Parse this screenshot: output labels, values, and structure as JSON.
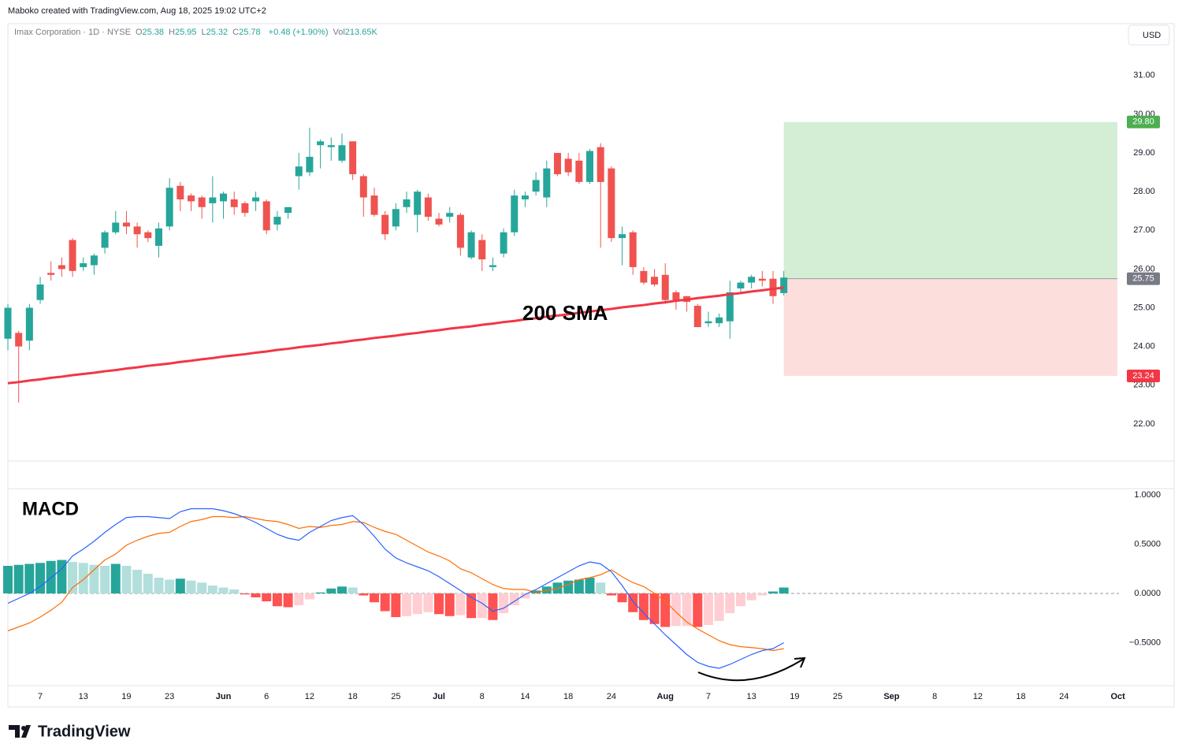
{
  "header": {
    "credit": "Maboko created with TradingView.com, Aug 18, 2025 19:02 UTC+2",
    "brand": "TradingView"
  },
  "chart_data": [
    {
      "type": "candlestick",
      "symbol": "Imax Corporation · 1D · NYSE",
      "legend": [
        {
          "key": "O",
          "value": "25.38"
        },
        {
          "key": "H",
          "value": "25.95"
        },
        {
          "key": "L",
          "value": "25.32"
        },
        {
          "key": "C",
          "value": "25.78"
        }
      ],
      "change": "+0.48 (+1.90%)",
      "volume_key": "Vol",
      "volume": "213.65K",
      "currency": "USD",
      "up_color": "#26a69a",
      "down_color": "#ef5350",
      "open": [
        24.2,
        24.35,
        24.15,
        25.2,
        25.9,
        26.1,
        26.75,
        26.05,
        26.1,
        26.55,
        26.95,
        27.2,
        27.1,
        26.95,
        26.6,
        27.1,
        28.15,
        27.9,
        27.85,
        27.7,
        27.75,
        27.8,
        27.7,
        27.75,
        27.75,
        27.15,
        27.45,
        28.4,
        28.5,
        29.2,
        29.15,
        28.8,
        29.3,
        28.4,
        27.9,
        27.4,
        27.1,
        27.6,
        27.4,
        27.85,
        27.3,
        27.35,
        27.4,
        26.3,
        26.75,
        26.05,
        26.4,
        26.95,
        27.8,
        28.0,
        27.85,
        29.0,
        28.85,
        28.8,
        28.25,
        29.15,
        28.6,
        26.8,
        26.95,
        25.95,
        25.8,
        25.85,
        25.4,
        25.3,
        25.05,
        24.6,
        24.6,
        24.65,
        25.5,
        25.65,
        25.75,
        25.75,
        25.38
      ],
      "high": [
        25.1,
        24.4,
        25.1,
        25.8,
        26.2,
        26.3,
        26.8,
        26.3,
        26.4,
        27.0,
        27.5,
        27.5,
        27.2,
        27.0,
        27.2,
        28.35,
        28.25,
        27.95,
        27.9,
        28.4,
        28.0,
        28.0,
        27.75,
        28.0,
        27.8,
        27.5,
        27.6,
        29.0,
        29.65,
        29.35,
        29.4,
        29.5,
        29.3,
        28.45,
        28.1,
        27.5,
        27.7,
        28.0,
        28.05,
        27.95,
        27.45,
        27.6,
        27.45,
        27.0,
        26.9,
        26.3,
        27.05,
        28.05,
        28.0,
        28.5,
        28.8,
        29.0,
        29.0,
        29.0,
        29.1,
        29.25,
        28.65,
        27.1,
        27.0,
        26.05,
        26.0,
        26.15,
        25.45,
        25.3,
        25.1,
        24.9,
        24.85,
        25.7,
        25.7,
        25.85,
        25.95,
        25.95,
        25.95
      ],
      "low": [
        23.9,
        22.55,
        23.9,
        25.1,
        25.7,
        25.8,
        25.8,
        25.95,
        25.85,
        26.4,
        26.9,
        26.9,
        26.55,
        26.7,
        26.3,
        27.0,
        27.5,
        27.5,
        27.3,
        27.2,
        27.3,
        27.4,
        27.35,
        27.5,
        26.9,
        27.0,
        27.3,
        28.05,
        28.4,
        28.6,
        28.8,
        28.75,
        28.3,
        27.35,
        27.35,
        26.75,
        27.0,
        27.45,
        26.95,
        27.25,
        27.1,
        27.2,
        26.35,
        26.25,
        25.95,
        25.95,
        26.3,
        26.85,
        27.6,
        27.9,
        27.6,
        28.4,
        28.4,
        28.2,
        28.2,
        26.55,
        26.7,
        26.1,
        25.85,
        25.6,
        25.55,
        25.1,
        24.95,
        24.9,
        24.5,
        24.5,
        24.5,
        24.2,
        25.4,
        25.5,
        25.55,
        25.1,
        25.32
      ],
      "close": [
        25.0,
        24.0,
        25.0,
        25.6,
        25.85,
        26.0,
        25.95,
        26.15,
        26.35,
        26.95,
        27.2,
        27.1,
        26.9,
        26.8,
        27.05,
        28.1,
        27.8,
        27.75,
        27.6,
        27.85,
        27.95,
        27.6,
        27.45,
        27.85,
        27.0,
        27.35,
        27.6,
        28.65,
        28.9,
        29.3,
        29.2,
        29.2,
        28.45,
        27.85,
        27.4,
        26.9,
        27.55,
        27.8,
        28.0,
        27.35,
        27.15,
        27.45,
        26.55,
        26.95,
        26.25,
        26.1,
        26.95,
        27.9,
        27.9,
        28.3,
        28.6,
        28.45,
        28.5,
        28.25,
        29.05,
        28.25,
        26.8,
        26.9,
        26.05,
        25.65,
        25.6,
        25.2,
        25.2,
        25.15,
        24.5,
        24.65,
        24.75,
        25.4,
        25.65,
        25.8,
        25.7,
        25.3,
        25.78
      ],
      "sma": {
        "name": "200 SMA",
        "color": "#f23645",
        "values": [
          23.05,
          23.08,
          23.12,
          23.15,
          23.19,
          23.22,
          23.26,
          23.29,
          23.32,
          23.36,
          23.39,
          23.43,
          23.46,
          23.5,
          23.53,
          23.56,
          23.6,
          23.63,
          23.67,
          23.7,
          23.74,
          23.77,
          23.8,
          23.84,
          23.87,
          23.91,
          23.94,
          23.98,
          24.01,
          24.04,
          24.08,
          24.11,
          24.15,
          24.18,
          24.22,
          24.25,
          24.28,
          24.32,
          24.35,
          24.39,
          24.42,
          24.46,
          24.49,
          24.52,
          24.56,
          24.59,
          24.63,
          24.66,
          24.7,
          24.73,
          24.77,
          24.8,
          24.83,
          24.87,
          24.9,
          24.94,
          24.97,
          25.01,
          25.04,
          25.07,
          25.11,
          25.14,
          25.18,
          25.21,
          25.25,
          25.28,
          25.31,
          25.35,
          25.38,
          25.42,
          25.45,
          25.49,
          25.52
        ]
      },
      "position": {
        "target": {
          "value": 29.8,
          "label": "29.80"
        },
        "entry": {
          "value": 25.75,
          "label": "25.75"
        },
        "stop": {
          "value": 23.24,
          "label": "23.24"
        },
        "profit_color": "#d3eed5",
        "loss_color": "#fcdfdd",
        "target_tag": "#4caf50",
        "entry_tag": "#787b86",
        "stop_tag": "#f23645"
      },
      "xlim": [
        0,
        103.1
      ],
      "ylim": [
        21.04,
        32.34
      ],
      "yticks": [
        {
          "value": 22,
          "label": "22.00"
        },
        {
          "value": 23,
          "label": "23.00"
        },
        {
          "value": 24,
          "label": "24.00"
        },
        {
          "value": 25,
          "label": "25.00"
        },
        {
          "value": 26,
          "label": "26.00"
        },
        {
          "value": 27,
          "label": "27.00"
        },
        {
          "value": 28,
          "label": "28.00"
        },
        {
          "value": 29,
          "label": "29.00"
        },
        {
          "value": 30,
          "label": "30.00"
        },
        {
          "value": 31,
          "label": "31.00"
        }
      ]
    },
    {
      "type": "macd",
      "title": "MACD",
      "histogram": {
        "colors": [
          "#26a69a",
          "#b2dfdb",
          "#ffcdd2",
          "#ff5252"
        ],
        "values": [
          0.28,
          0.29,
          0.3,
          0.31,
          0.33,
          0.34,
          0.32,
          0.31,
          0.29,
          0.28,
          0.3,
          0.28,
          0.24,
          0.2,
          0.16,
          0.14,
          0.15,
          0.13,
          0.11,
          0.08,
          0.06,
          0.04,
          -0.01,
          -0.04,
          -0.08,
          -0.13,
          -0.14,
          -0.12,
          -0.06,
          0.01,
          0.05,
          0.07,
          0.06,
          -0.02,
          -0.09,
          -0.18,
          -0.24,
          -0.23,
          -0.21,
          -0.19,
          -0.21,
          -0.23,
          -0.22,
          -0.25,
          -0.25,
          -0.27,
          -0.2,
          -0.12,
          -0.05,
          0.03,
          0.07,
          0.11,
          0.13,
          0.14,
          0.16,
          0.11,
          -0.02,
          -0.09,
          -0.19,
          -0.27,
          -0.31,
          -0.34,
          -0.33,
          -0.33,
          -0.34,
          -0.32,
          -0.28,
          -0.2,
          -0.13,
          -0.07,
          -0.02,
          0.02,
          0.06
        ]
      },
      "macd_line": {
        "color": "#2962ff",
        "values": [
          -0.1,
          -0.05,
          0,
          0.07,
          0.16,
          0.25,
          0.38,
          0.45,
          0.53,
          0.62,
          0.7,
          0.77,
          0.78,
          0.78,
          0.77,
          0.76,
          0.83,
          0.86,
          0.86,
          0.86,
          0.84,
          0.81,
          0.77,
          0.72,
          0.66,
          0.6,
          0.56,
          0.54,
          0.62,
          0.68,
          0.74,
          0.77,
          0.79,
          0.7,
          0.58,
          0.45,
          0.36,
          0.31,
          0.27,
          0.23,
          0.17,
          0.1,
          0.03,
          -0.04,
          -0.1,
          -0.18,
          -0.15,
          -0.08,
          -0.01,
          0.04,
          0.1,
          0.16,
          0.22,
          0.28,
          0.32,
          0.3,
          0.22,
          0.08,
          -0.08,
          -0.2,
          -0.31,
          -0.42,
          -0.52,
          -0.62,
          -0.7,
          -0.74,
          -0.76,
          -0.72,
          -0.67,
          -0.62,
          -0.58,
          -0.56,
          -0.5
        ]
      },
      "signal_line": {
        "color": "#ff6d00",
        "values": [
          -0.38,
          -0.34,
          -0.3,
          -0.24,
          -0.17,
          -0.09,
          0.06,
          0.14,
          0.24,
          0.34,
          0.4,
          0.49,
          0.54,
          0.58,
          0.61,
          0.62,
          0.68,
          0.73,
          0.75,
          0.78,
          0.78,
          0.77,
          0.78,
          0.76,
          0.74,
          0.73,
          0.7,
          0.66,
          0.68,
          0.67,
          0.69,
          0.7,
          0.73,
          0.72,
          0.67,
          0.63,
          0.6,
          0.54,
          0.48,
          0.42,
          0.38,
          0.33,
          0.25,
          0.21,
          0.15,
          0.09,
          0.05,
          0.04,
          0.04,
          0.01,
          0.03,
          0.05,
          0.09,
          0.14,
          0.16,
          0.19,
          0.24,
          0.17,
          0.11,
          0.07,
          0,
          -0.08,
          -0.19,
          -0.29,
          -0.36,
          -0.42,
          -0.48,
          -0.52,
          -0.54,
          -0.55,
          -0.56,
          -0.58,
          -0.56
        ]
      },
      "xlim": [
        0,
        103.1
      ],
      "ylim": [
        -0.936,
        1.064
      ],
      "yticks": [
        {
          "value": 1,
          "label": "1.0000"
        },
        {
          "value": 0.5,
          "label": "0.5000"
        },
        {
          "value": 0,
          "label": "0.0000"
        },
        {
          "value": -0.5,
          "label": "−0.5000"
        }
      ],
      "xticks": [
        {
          "value": 3,
          "label": "7"
        },
        {
          "value": 7,
          "label": "13"
        },
        {
          "value": 11,
          "label": "19"
        },
        {
          "value": 15,
          "label": "23"
        },
        {
          "value": 20,
          "label": "Jun"
        },
        {
          "value": 24,
          "label": "6"
        },
        {
          "value": 28,
          "label": "12"
        },
        {
          "value": 32,
          "label": "18"
        },
        {
          "value": 36,
          "label": "25"
        },
        {
          "value": 40,
          "label": "Jul"
        },
        {
          "value": 44,
          "label": "8"
        },
        {
          "value": 48,
          "label": "14"
        },
        {
          "value": 52,
          "label": "18"
        },
        {
          "value": 56,
          "label": "24"
        },
        {
          "value": 61,
          "label": "Aug"
        },
        {
          "value": 65,
          "label": "7"
        },
        {
          "value": 69,
          "label": "13"
        },
        {
          "value": 73,
          "label": "19"
        },
        {
          "value": 77,
          "label": "25"
        },
        {
          "value": 82,
          "label": "Sep"
        },
        {
          "value": 86,
          "label": "8"
        },
        {
          "value": 90,
          "label": "12"
        },
        {
          "value": 94,
          "label": "18"
        },
        {
          "value": 98,
          "label": "24"
        },
        {
          "value": 103,
          "label": "Oct"
        }
      ]
    }
  ]
}
